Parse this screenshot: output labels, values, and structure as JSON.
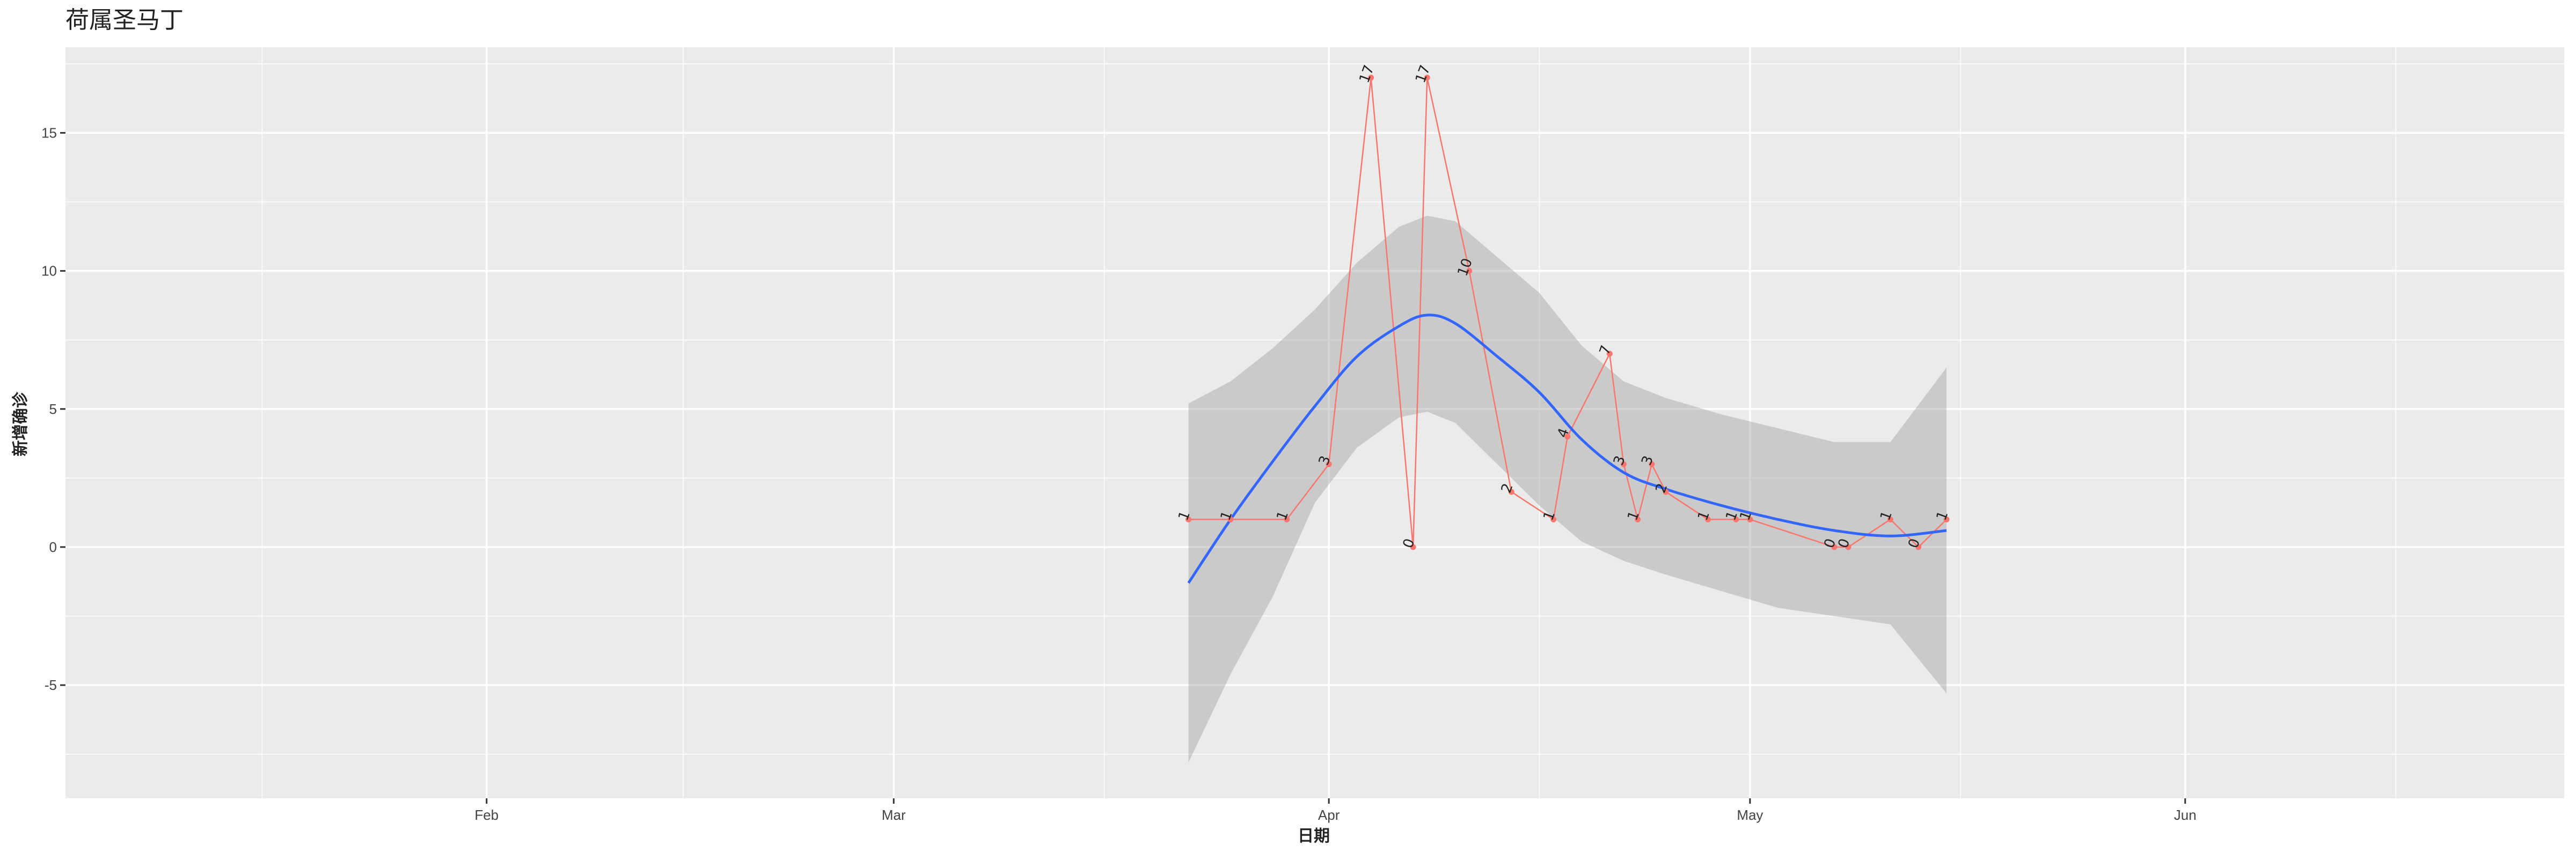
{
  "chart_data": {
    "type": "line",
    "title": "荷属圣马丁",
    "xlabel": "日期",
    "ylabel": "新增确诊",
    "x_ticks": [
      "Feb",
      "Mar",
      "Apr",
      "May",
      "Jun"
    ],
    "y_ticks": [
      "-5",
      "0",
      "5",
      "10",
      "15"
    ],
    "ylim": [
      -9.1,
      18.1
    ],
    "xlim": [
      "2020-01-02",
      "2020-06-28"
    ],
    "grid": true,
    "background": "#EBEBEB",
    "series": [
      {
        "kind": "observed",
        "color": "#F8766D",
        "points": [
          {
            "x": "2020-03-22",
            "y": 1
          },
          {
            "x": "2020-03-25",
            "y": 1
          },
          {
            "x": "2020-03-29",
            "y": 1
          },
          {
            "x": "2020-04-01",
            "y": 3
          },
          {
            "x": "2020-04-04",
            "y": 17
          },
          {
            "x": "2020-04-07",
            "y": 0
          },
          {
            "x": "2020-04-08",
            "y": 17
          },
          {
            "x": "2020-04-11",
            "y": 10
          },
          {
            "x": "2020-04-14",
            "y": 2
          },
          {
            "x": "2020-04-17",
            "y": 1
          },
          {
            "x": "2020-04-18",
            "y": 4
          },
          {
            "x": "2020-04-21",
            "y": 7
          },
          {
            "x": "2020-04-22",
            "y": 3
          },
          {
            "x": "2020-04-23",
            "y": 1
          },
          {
            "x": "2020-04-24",
            "y": 3
          },
          {
            "x": "2020-04-25",
            "y": 2
          },
          {
            "x": "2020-04-28",
            "y": 1
          },
          {
            "x": "2020-04-30",
            "y": 1
          },
          {
            "x": "2020-05-01",
            "y": 1
          },
          {
            "x": "2020-05-07",
            "y": 0
          },
          {
            "x": "2020-05-08",
            "y": 0
          },
          {
            "x": "2020-05-11",
            "y": 1
          },
          {
            "x": "2020-05-13",
            "y": 0
          },
          {
            "x": "2020-05-15",
            "y": 1
          }
        ]
      },
      {
        "kind": "smooth",
        "color": "#3366FF",
        "points": [
          {
            "x": "2020-03-22",
            "y": -1.3
          },
          {
            "x": "2020-03-25",
            "y": 1.0
          },
          {
            "x": "2020-03-28",
            "y": 3.1
          },
          {
            "x": "2020-03-31",
            "y": 5.1
          },
          {
            "x": "2020-04-03",
            "y": 6.9
          },
          {
            "x": "2020-04-06",
            "y": 8.0
          },
          {
            "x": "2020-04-08",
            "y": 8.4
          },
          {
            "x": "2020-04-10",
            "y": 8.1
          },
          {
            "x": "2020-04-13",
            "y": 6.9
          },
          {
            "x": "2020-04-16",
            "y": 5.6
          },
          {
            "x": "2020-04-19",
            "y": 3.9
          },
          {
            "x": "2020-04-22",
            "y": 2.7
          },
          {
            "x": "2020-04-25",
            "y": 2.1
          },
          {
            "x": "2020-04-29",
            "y": 1.5
          },
          {
            "x": "2020-05-03",
            "y": 1.0
          },
          {
            "x": "2020-05-07",
            "y": 0.6
          },
          {
            "x": "2020-05-11",
            "y": 0.4
          },
          {
            "x": "2020-05-15",
            "y": 0.6
          }
        ]
      },
      {
        "kind": "confidence_band",
        "color": "#999999",
        "points": [
          {
            "x": "2020-03-22",
            "lower": -7.8,
            "upper": 5.2
          },
          {
            "x": "2020-03-25",
            "lower": -4.6,
            "upper": 6.0
          },
          {
            "x": "2020-03-28",
            "lower": -1.8,
            "upper": 7.2
          },
          {
            "x": "2020-03-31",
            "lower": 1.6,
            "upper": 8.6
          },
          {
            "x": "2020-04-03",
            "lower": 3.6,
            "upper": 10.3
          },
          {
            "x": "2020-04-06",
            "lower": 4.7,
            "upper": 11.6
          },
          {
            "x": "2020-04-08",
            "lower": 4.9,
            "upper": 12.0
          },
          {
            "x": "2020-04-10",
            "lower": 4.5,
            "upper": 11.8
          },
          {
            "x": "2020-04-13",
            "lower": 3.0,
            "upper": 10.5
          },
          {
            "x": "2020-04-16",
            "lower": 1.5,
            "upper": 9.2
          },
          {
            "x": "2020-04-19",
            "lower": 0.2,
            "upper": 7.3
          },
          {
            "x": "2020-04-22",
            "lower": -0.5,
            "upper": 6.0
          },
          {
            "x": "2020-04-25",
            "lower": -1.0,
            "upper": 5.4
          },
          {
            "x": "2020-04-29",
            "lower": -1.6,
            "upper": 4.8
          },
          {
            "x": "2020-05-03",
            "lower": -2.2,
            "upper": 4.3
          },
          {
            "x": "2020-05-07",
            "lower": -2.5,
            "upper": 3.8
          },
          {
            "x": "2020-05-11",
            "lower": -2.8,
            "upper": 3.8
          },
          {
            "x": "2020-05-15",
            "lower": -5.3,
            "upper": 6.5
          }
        ]
      }
    ]
  }
}
